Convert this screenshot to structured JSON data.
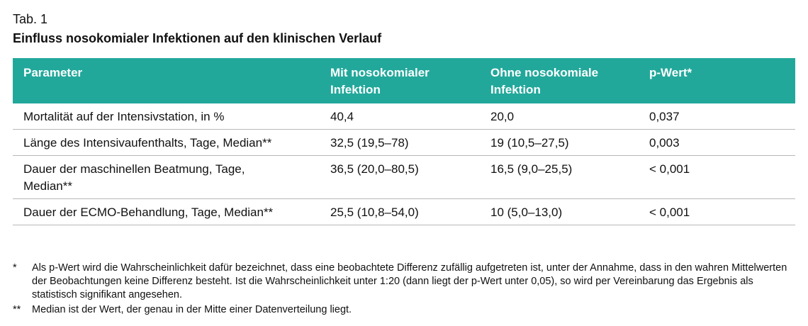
{
  "label": "Tab. 1",
  "title": "Einfluss nosokomialer Infektionen auf den klinischen Verlauf",
  "table": {
    "header": [
      "Parameter",
      "Mit nosokomialer Infektion",
      "Ohne nosokomiale Infektion",
      "p-Wert*"
    ],
    "rows": [
      [
        "Mortalität auf der Intensivstation, in %",
        "40,4",
        "20,0",
        "0,037"
      ],
      [
        "Länge des Intensivaufenthalts, Tage, Median**",
        "32,5 (19,5–78)",
        "19 (10,5–27,5)",
        "0,003"
      ],
      [
        "Dauer der maschinellen Beatmung, Tage, Median**",
        "36,5 (20,0–80,5)",
        "16,5 (9,0–25,5)",
        "< 0,001"
      ],
      [
        "Dauer der ECMO-Behandlung, Tage, Median**",
        "25,5 (10,8–54,0)",
        "10 (5,0–13,0)",
        "< 0,001"
      ]
    ]
  },
  "footnotes": [
    {
      "marker": "*",
      "text": "Als p-Wert wird die Wahrscheinlichkeit dafür bezeichnet, dass eine beobachtete Differenz zufällig aufgetreten ist, unter der Annahme, dass in den wahren Mittelwerten der Beobachtungen keine Differenz besteht. Ist die Wahrscheinlichkeit unter 1:20 (dann liegt der p-Wert unter 0,05), so wird per Vereinbarung das Ergebnis als statistisch signifikant angesehen."
    },
    {
      "marker": "**",
      "text": "Median ist der Wert, der genau in der Mitte einer Datenverteilung liegt."
    }
  ]
}
